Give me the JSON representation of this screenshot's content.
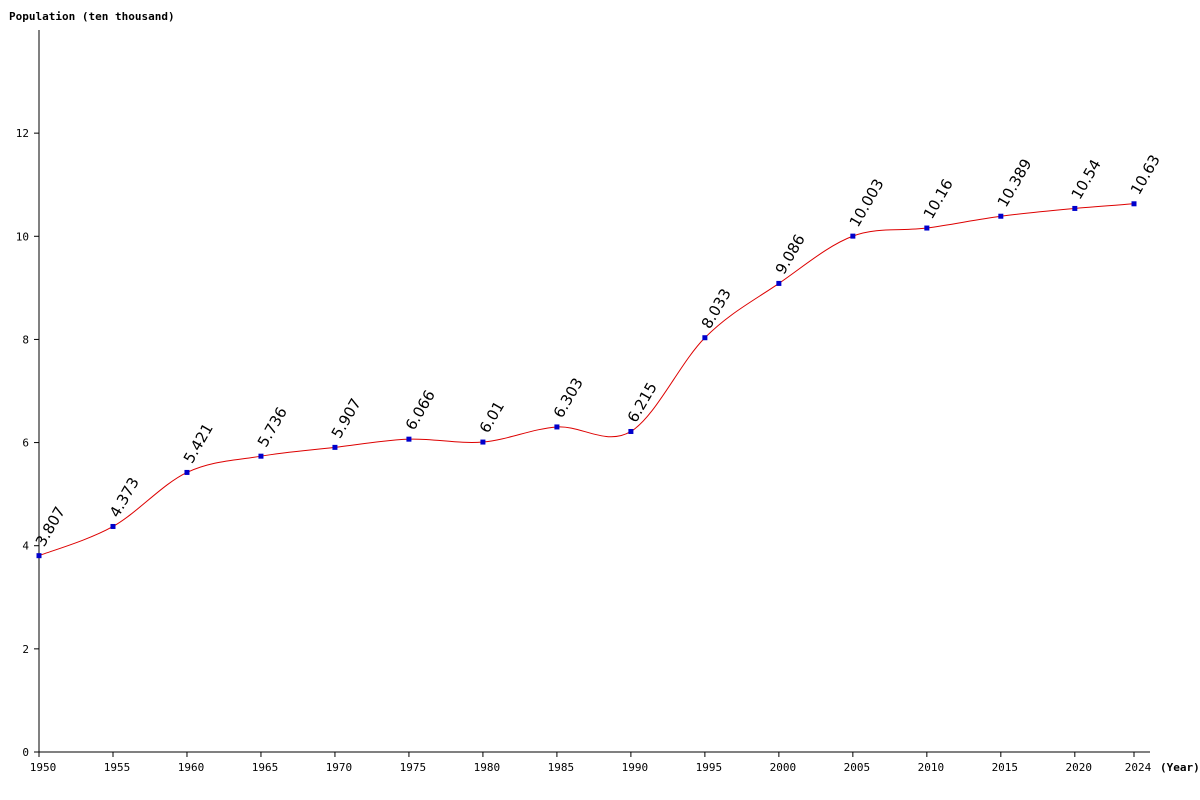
{
  "chart_data": {
    "type": "line",
    "ylabel": "Population (ten thousand)",
    "xlabel": "(Year)",
    "x": [
      1950,
      1955,
      1960,
      1965,
      1970,
      1975,
      1980,
      1985,
      1990,
      1995,
      2000,
      2005,
      2010,
      2015,
      2020,
      2024
    ],
    "x_tick_labels": [
      "1950",
      "1955",
      "1960",
      "1965",
      "1970",
      "1975",
      "1980",
      "1985",
      "1990",
      "1995",
      "2000",
      "2005",
      "2010",
      "2015",
      "2020",
      "2024"
    ],
    "values": [
      3.807,
      4.373,
      5.421,
      5.736,
      5.907,
      6.066,
      6.01,
      6.303,
      6.215,
      8.033,
      9.086,
      10.003,
      10.16,
      10.389,
      10.54,
      10.63
    ],
    "value_labels": [
      "3.807",
      "4.373",
      "5.421",
      "5.736",
      "5.907",
      "6.066",
      "6.01",
      "6.303",
      "6.215",
      "8.033",
      "9.086",
      "10.003",
      "10.16",
      "10.389",
      "10.54",
      "10.63"
    ],
    "y_ticks": [
      0,
      2,
      4,
      6,
      8,
      10,
      12
    ],
    "y_tick_labels": [
      "0",
      "2",
      "4",
      "6",
      "8",
      "10",
      "12"
    ],
    "ylim": [
      0,
      14
    ],
    "xlim": [
      1950,
      2024
    ],
    "grid": false,
    "legend": "none",
    "colors": {
      "line": "#dd0000",
      "marker": "#0000cc",
      "axis": "#000000"
    }
  }
}
